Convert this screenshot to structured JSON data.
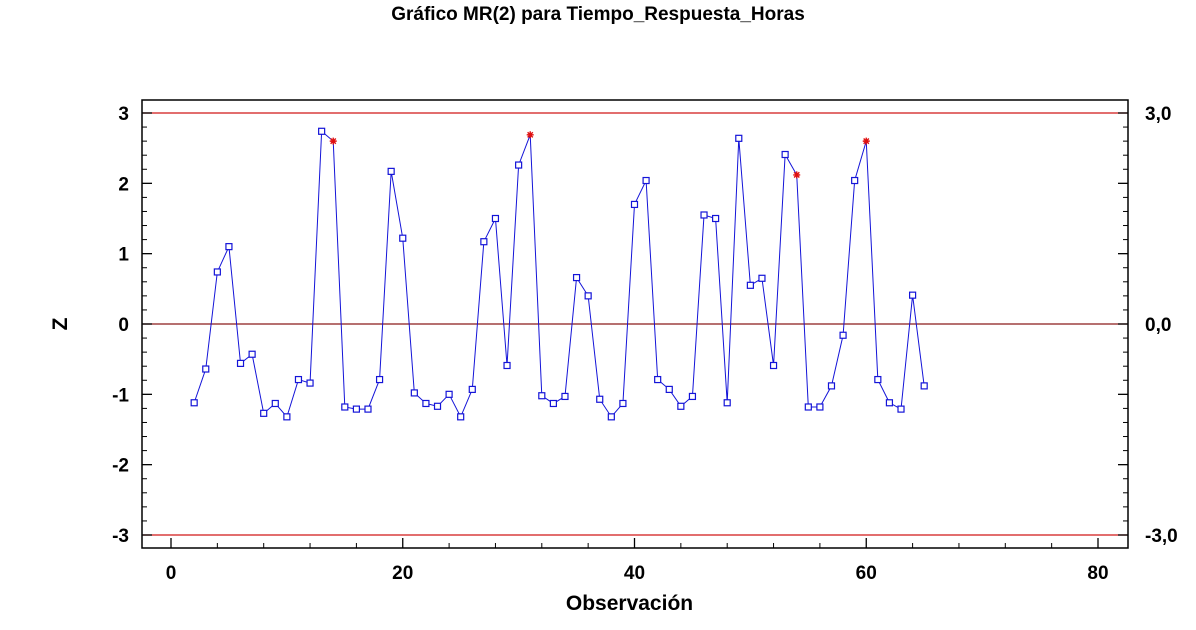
{
  "chart_data": {
    "type": "line",
    "title": "Gráfico MR(2) para Tiempo_Respuesta_Horas",
    "xlabel": "Observación",
    "ylabel": "Z",
    "xlim": [
      0,
      80
    ],
    "ylim": [
      -3.3,
      3.2
    ],
    "x_ticks": [
      "0",
      "20",
      "40",
      "60",
      "80"
    ],
    "y_ticks": [
      "3",
      "2",
      "1",
      "0",
      "-1",
      "-2",
      "-3"
    ],
    "control_limits": [
      {
        "label": "3,0",
        "value": 3.0,
        "color": "#d01818"
      },
      {
        "label": "0,0",
        "value": 0.0,
        "color": "#8b1a1a"
      },
      {
        "label": "-3,0",
        "value": -3.0,
        "color": "#d01818"
      }
    ],
    "grid": false,
    "series": [
      {
        "color": "#1414d8",
        "x": [
          2,
          3,
          4,
          5,
          6,
          7,
          8,
          9,
          10,
          11,
          12,
          13,
          14,
          15,
          16,
          17,
          18,
          19,
          20,
          21,
          22,
          23,
          24,
          25,
          26,
          27,
          28,
          29,
          30,
          31,
          32,
          33,
          34,
          35,
          36,
          37,
          38,
          39,
          40,
          41,
          42,
          43,
          44,
          45,
          46,
          47,
          48,
          49,
          50,
          51,
          52,
          53,
          54,
          55,
          56,
          57,
          58,
          59,
          60,
          61,
          62,
          63,
          64,
          65
        ],
        "y": [
          -1.12,
          -0.64,
          0.74,
          1.1,
          -0.56,
          -0.43,
          -1.27,
          -1.13,
          -1.32,
          -0.79,
          -0.84,
          2.74,
          2.6,
          -1.18,
          -1.21,
          -1.21,
          -0.79,
          2.17,
          1.22,
          -0.98,
          -1.13,
          -1.17,
          -1.0,
          -1.32,
          -0.93,
          1.17,
          1.5,
          -0.59,
          2.26,
          2.69,
          -1.02,
          -1.13,
          -1.03,
          0.66,
          0.4,
          -1.07,
          -1.32,
          -1.13,
          1.7,
          2.04,
          -0.79,
          -0.93,
          -1.17,
          -1.03,
          1.55,
          1.5,
          -1.12,
          2.64,
          0.55,
          0.65,
          -0.59,
          2.41,
          2.12,
          -1.18,
          -1.18,
          -0.88,
          -0.16,
          2.04,
          2.6,
          -0.79,
          -1.12,
          -1.21,
          0.41,
          -0.88
        ],
        "flagged_x": [
          14,
          31,
          54,
          60
        ]
      }
    ]
  }
}
